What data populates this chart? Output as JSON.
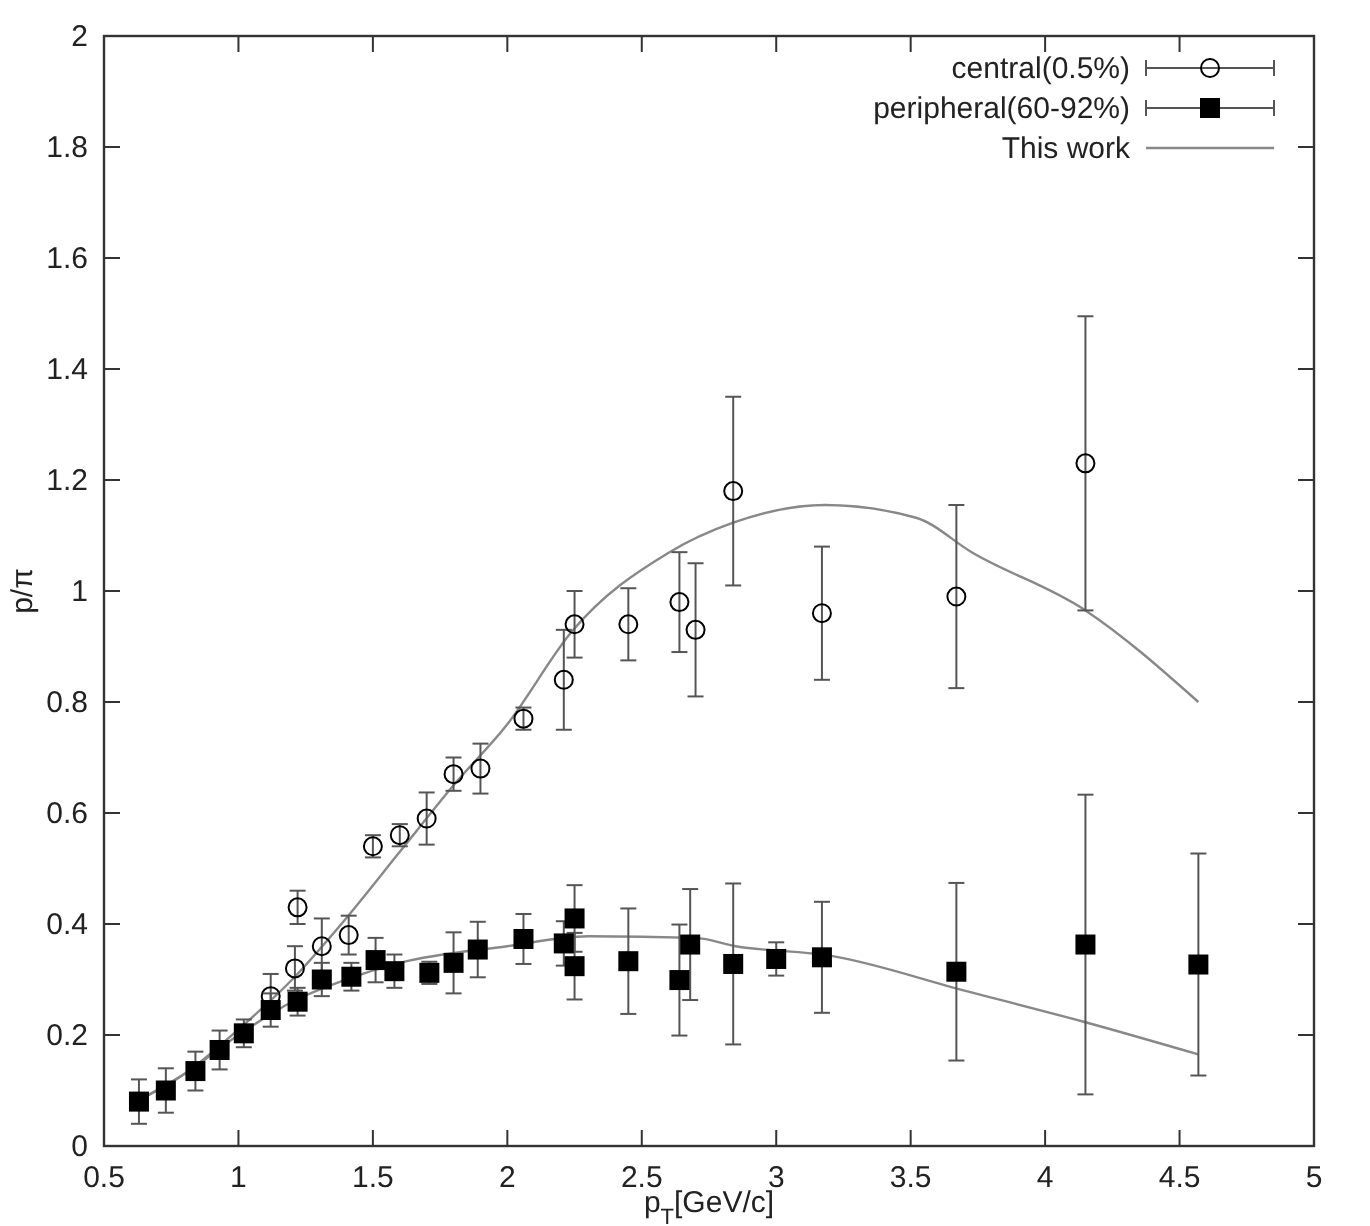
{
  "chart_data": {
    "type": "scatter",
    "xlabel": "p$_{T}$[GeV/c]",
    "ylabel": "p/π",
    "xlim": [
      0.5,
      5
    ],
    "ylim": [
      0,
      2
    ],
    "xticks": [
      0.5,
      1,
      1.5,
      2,
      2.5,
      3,
      3.5,
      4,
      4.5,
      5
    ],
    "yticks": [
      0,
      0.2,
      0.4,
      0.6,
      0.8,
      1,
      1.2,
      1.4,
      1.6,
      1.8,
      2
    ],
    "grid": false,
    "legend": "top right",
    "series": [
      {
        "name": "central(0.5%)",
        "marker": "circle",
        "color": "#000000",
        "x": [
          1.12,
          1.21,
          1.22,
          1.31,
          1.41,
          1.5,
          1.6,
          1.7,
          1.8,
          1.9,
          2.06,
          2.21,
          2.25,
          2.45,
          2.64,
          2.7,
          2.84,
          3.17,
          3.67,
          4.15
        ],
        "values": [
          0.27,
          0.32,
          0.43,
          0.36,
          0.38,
          0.54,
          0.56,
          0.59,
          0.67,
          0.68,
          0.77,
          0.84,
          0.94,
          0.94,
          0.98,
          0.93,
          1.18,
          0.96,
          0.99,
          1.23
        ],
        "errors": [
          0.04,
          0.04,
          0.03,
          0.05,
          0.035,
          0.02,
          0.02,
          0.047,
          0.03,
          0.045,
          0.02,
          0.09,
          0.06,
          0.065,
          0.09,
          0.12,
          0.17,
          0.12,
          0.165,
          0.265
        ]
      },
      {
        "name": "peripheral(60-92%)",
        "marker": "square",
        "color": "#000000",
        "x": [
          0.63,
          0.73,
          0.84,
          0.93,
          1.02,
          1.12,
          1.22,
          1.31,
          1.42,
          1.51,
          1.58,
          1.71,
          1.8,
          1.89,
          2.06,
          2.21,
          2.25,
          2.25,
          2.45,
          2.64,
          2.68,
          2.84,
          3.0,
          3.17,
          3.67,
          4.15,
          4.57
        ],
        "values": [
          0.08,
          0.1,
          0.135,
          0.173,
          0.203,
          0.245,
          0.26,
          0.3,
          0.305,
          0.335,
          0.315,
          0.312,
          0.33,
          0.354,
          0.373,
          0.365,
          0.41,
          0.324,
          0.333,
          0.299,
          0.363,
          0.328,
          0.337,
          0.34,
          0.314,
          0.363,
          0.327
        ],
        "errors": [
          0.04,
          0.04,
          0.035,
          0.035,
          0.025,
          0.03,
          0.025,
          0.03,
          0.025,
          0.04,
          0.03,
          0.02,
          0.055,
          0.05,
          0.045,
          0.04,
          0.06,
          0.06,
          0.095,
          0.1,
          0.1,
          0.145,
          0.03,
          0.1,
          0.16,
          0.27,
          0.2
        ]
      },
      {
        "name": "This work",
        "type": "line",
        "marker": "none",
        "color": "#888888",
        "x": [
          0.6,
          0.8,
          1.0,
          1.2,
          1.4,
          1.6,
          1.8,
          2.0,
          2.24,
          2.6,
          2.84,
          3.18,
          3.52,
          3.73,
          4.15,
          4.57
        ],
        "values": [
          0.075,
          0.13,
          0.21,
          0.3,
          0.41,
          0.53,
          0.65,
          0.76,
          0.927,
          1.069,
          1.123,
          1.155,
          1.132,
          1.069,
          0.965,
          0.8
        ]
      },
      {
        "type": "line",
        "marker": "none",
        "color": "#888888",
        "x": [
          0.6,
          0.8,
          1.0,
          1.2,
          1.4,
          1.6,
          2.0,
          2.3,
          2.7,
          2.85,
          3.2,
          3.7,
          4.15,
          4.57
        ],
        "values": [
          0.075,
          0.13,
          0.2,
          0.26,
          0.3,
          0.33,
          0.36,
          0.378,
          0.375,
          0.36,
          0.343,
          0.28,
          0.223,
          0.165
        ]
      }
    ]
  }
}
